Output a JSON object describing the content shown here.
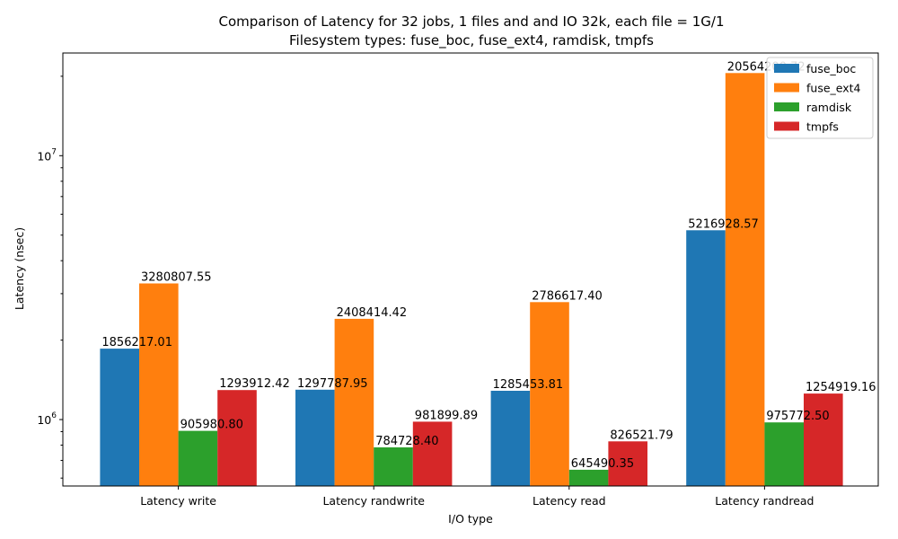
{
  "chart_data": {
    "type": "bar",
    "title_line1": "Comparison of Latency for 32 jobs, 1 files and  and IO 32k, each file = 1G/1",
    "title_line2": "Filesystem types: fuse_boc, fuse_ext4, ramdisk, tmpfs",
    "xlabel": "I/O type",
    "ylabel": "Latency (nsec)",
    "yscale": "log",
    "ylim": [
      560000,
      24500000
    ],
    "y_major_ticks": [
      {
        "value": 1000000,
        "base": "10",
        "exp": "6"
      },
      {
        "value": 10000000,
        "base": "10",
        "exp": "7"
      }
    ],
    "y_minor_ticks": [
      600000,
      700000,
      800000,
      900000,
      2000000,
      3000000,
      4000000,
      5000000,
      6000000,
      7000000,
      8000000,
      9000000,
      20000000
    ],
    "categories": [
      "Latency write",
      "Latency randwrite",
      "Latency read",
      "Latency randread"
    ],
    "series": [
      {
        "name": "fuse_boc",
        "color": "#1f77b4",
        "values": [
          1856217.01,
          1297787.95,
          1285453.81,
          5216928.57
        ],
        "labels": [
          "1856217.01",
          "1297787.95",
          "1285453.81",
          "5216928.57"
        ]
      },
      {
        "name": "fuse_ext4",
        "color": "#ff7f0e",
        "values": [
          3280807.55,
          2408414.42,
          2786617.4,
          20564200.72
        ],
        "labels": [
          "3280807.55",
          "2408414.42",
          "2786617.40",
          "20564200.72"
        ]
      },
      {
        "name": "ramdisk",
        "color": "#2ca02c",
        "values": [
          905980.8,
          784728.4,
          645490.35,
          975772.5
        ],
        "labels": [
          "905980.80",
          "784728.40",
          "645490.35",
          "975772.50"
        ]
      },
      {
        "name": "tmpfs",
        "color": "#d62728",
        "values": [
          1293912.42,
          981899.89,
          826521.79,
          1254919.16
        ],
        "labels": [
          "1293912.42",
          "981899.89",
          "826521.79",
          "1254919.16"
        ]
      }
    ],
    "legend_position": "top-right",
    "grid": false
  }
}
